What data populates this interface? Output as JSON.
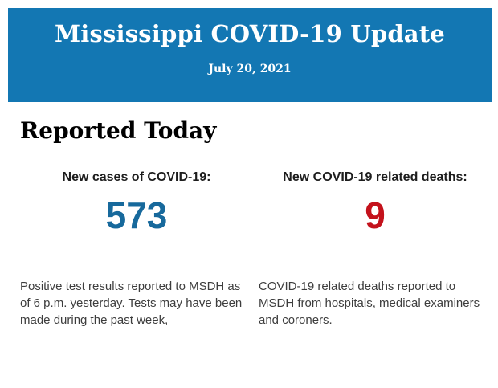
{
  "page": {
    "header": {
      "title": "Mississippi COVID-19 Update",
      "date": "July 20, 2021",
      "bg_color": "#1377b3",
      "text_color": "#ffffff"
    },
    "section_heading": "Reported Today",
    "stats": [
      {
        "label": "New cases of COVID-19:",
        "value": "573",
        "value_color": "#17699c",
        "description": "Positive test results reported to MSDH as of 6 p.m. yesterday. Tests may have been made during the past week,"
      },
      {
        "label": "New COVID-19 related deaths:",
        "value": "9",
        "value_color": "#c4121c",
        "description": "COVID-19 related deaths reported to MSDH from hospitals, medical examiners and coroners."
      }
    ]
  }
}
